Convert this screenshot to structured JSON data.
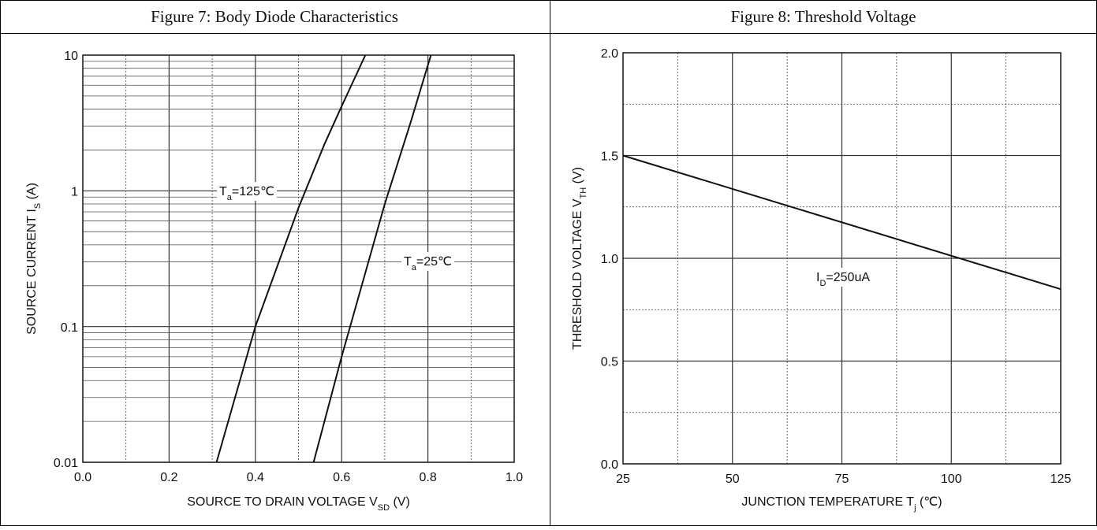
{
  "chart_data": [
    {
      "type": "line",
      "title": "Figure 7: Body Diode Characteristics",
      "xlabel": [
        "SOURCE TO DRAIN VOLTAGE V",
        "SD",
        " (V)"
      ],
      "ylabel": [
        "SOURCE CURRENT I",
        "S",
        " (A)"
      ],
      "log_y": true,
      "grid": true,
      "xlim": [
        0,
        1
      ],
      "ylim": [
        0.01,
        10
      ],
      "xticks": [
        {
          "value": 0,
          "label": "0.0"
        },
        0.2,
        0.4,
        0.6,
        0.8,
        {
          "value": 1,
          "label": "1.0"
        }
      ],
      "yticks": [
        0.01,
        0.1,
        1,
        10
      ],
      "minor_xticks": [
        0.1,
        0.3,
        0.5,
        0.7,
        0.9
      ],
      "minor_yticks": [
        0.02,
        0.03,
        0.04,
        0.05,
        0.06,
        0.07,
        0.08,
        0.09,
        0.2,
        0.3,
        0.4,
        0.5,
        0.6,
        0.7,
        0.8,
        0.9,
        2,
        3,
        4,
        5,
        6,
        7,
        8,
        9
      ],
      "series": [
        {
          "color": "#111111",
          "x": [
            0.31,
            0.4,
            0.5,
            0.56,
            0.6,
            0.655
          ],
          "values": [
            0.01,
            0.1,
            0.75,
            2.2,
            4.2,
            10
          ]
        },
        {
          "color": "#111111",
          "x": [
            0.535,
            0.6,
            0.7,
            0.76,
            0.807
          ],
          "values": [
            0.01,
            0.06,
            0.8,
            3.2,
            10
          ]
        }
      ],
      "annotations": [
        [
          "T",
          "a",
          "=125℃"
        ],
        [
          "T",
          "a",
          "=25℃"
        ]
      ]
    },
    {
      "type": "line",
      "title": "Figure 8: Threshold Voltage",
      "xlabel": [
        "JUNCTION TEMPERATURE T",
        "j",
        " (℃)"
      ],
      "ylabel": [
        "THRESHOLD VOLTAGE V",
        "TH",
        " (V)"
      ],
      "log_y": false,
      "grid": true,
      "xlim": [
        25,
        125
      ],
      "ylim": [
        0,
        2
      ],
      "xticks": [
        25,
        50,
        75,
        100,
        125
      ],
      "yticks": [
        {
          "value": 0,
          "label": "0.0"
        },
        0.5,
        {
          "value": 1,
          "label": "1.0"
        },
        1.5,
        {
          "value": 2,
          "label": "2.0"
        }
      ],
      "minor_xticks": [
        37.5,
        62.5,
        87.5,
        112.5
      ],
      "minor_yticks": [
        0.25,
        0.75,
        1.25,
        1.75
      ],
      "series": [
        {
          "color": "#111111",
          "x": [
            25,
            125
          ],
          "values": [
            1.5,
            0.85
          ]
        }
      ],
      "annotations": [
        [
          "I",
          "D",
          "=250uA"
        ]
      ]
    }
  ]
}
